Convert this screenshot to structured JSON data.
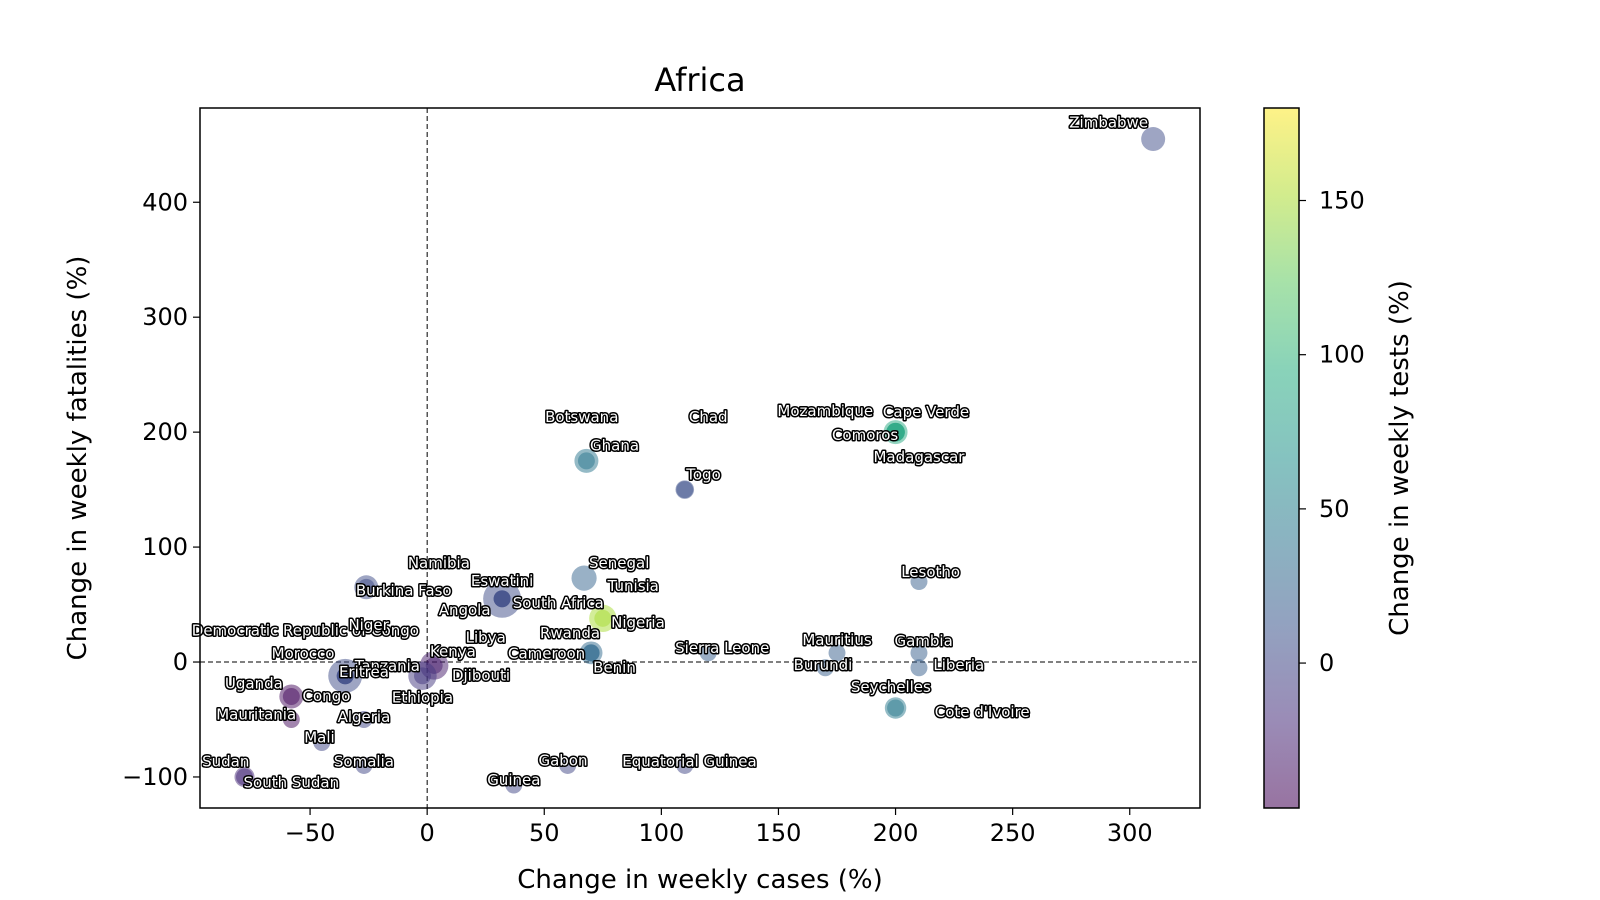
{
  "chart_data": {
    "type": "scatter",
    "title": "Africa",
    "xlabel": "Change in weekly cases (%)",
    "ylabel": "Change in weekly fatalities (%)",
    "colorbar_label": "Change in weekly tests (%)",
    "xlim": [
      -97,
      330
    ],
    "ylim": [
      -127,
      482
    ],
    "xticks": [
      -50,
      0,
      50,
      100,
      150,
      200,
      250,
      300
    ],
    "xtick_labels": [
      "−50",
      "0",
      "50",
      "100",
      "150",
      "200",
      "250",
      "300"
    ],
    "yticks": [
      -100,
      0,
      100,
      200,
      300,
      400
    ],
    "ytick_labels": [
      "−100",
      "0",
      "100",
      "200",
      "300",
      "400"
    ],
    "colorbar_range": [
      -47,
      180
    ],
    "colorbar_ticks": [
      0,
      50,
      100,
      150
    ],
    "colorbar_tick_labels": [
      "0",
      "50",
      "100",
      "150"
    ],
    "colormap": "viridis",
    "reference_lines": {
      "x": 0,
      "y": 0,
      "style": "dashed"
    },
    "grid": false,
    "points": [
      {
        "label": "Zimbabwe",
        "x": 310,
        "y": 455,
        "color_value": 5,
        "size": 1.0
      },
      {
        "label": "Cape Verde",
        "x": 200,
        "y": 200,
        "color_value": 90,
        "size": 1.0
      },
      {
        "label": "Comoros",
        "x": 200,
        "y": 200,
        "color_value": 90,
        "size": 0.6
      },
      {
        "label": "Mozambique",
        "x": 200,
        "y": 200,
        "color_value": 80,
        "size": 0.6
      },
      {
        "label": "Madagascar",
        "x": 200,
        "y": 200,
        "color_value": 90,
        "size": 0.6
      },
      {
        "label": "Ghana",
        "x": 68,
        "y": 175,
        "color_value": 42,
        "size": 1.0
      },
      {
        "label": "Togo",
        "x": 110,
        "y": 150,
        "color_value": 8,
        "size": 0.6
      },
      {
        "label": "Botswana",
        "x": 68,
        "y": 175,
        "color_value": 42,
        "size": 0.5
      },
      {
        "label": "Chad",
        "x": 110,
        "y": 150,
        "color_value": 8,
        "size": 0.5
      },
      {
        "label": "Senegal",
        "x": 67,
        "y": 73,
        "color_value": 25,
        "size": 1.1
      },
      {
        "label": "Tunisia",
        "x": 75,
        "y": 38,
        "color_value": 150,
        "size": 1.3
      },
      {
        "label": "Eswatini",
        "x": 32,
        "y": 55,
        "color_value": 5,
        "size": 2.5
      },
      {
        "label": "Namibia",
        "x": 32,
        "y": 55,
        "color_value": 5,
        "size": 0.5
      },
      {
        "label": "South Africa",
        "x": 32,
        "y": 55,
        "color_value": 5,
        "size": 0.5
      },
      {
        "label": "Nigeria",
        "x": 75,
        "y": 38,
        "color_value": 150,
        "size": 0.5
      },
      {
        "label": "Burkina Faso",
        "x": -26,
        "y": 65,
        "color_value": 5,
        "size": 1.0
      },
      {
        "label": "Angola",
        "x": 32,
        "y": 55,
        "color_value": 5,
        "size": 0.5
      },
      {
        "label": "Democratic Republic of Congo",
        "x": -35,
        "y": -12,
        "color_value": 5,
        "size": 0.5
      },
      {
        "label": "Niger",
        "x": -26,
        "y": 65,
        "color_value": 5,
        "size": 0.5
      },
      {
        "label": "Libya",
        "x": 3,
        "y": -3,
        "color_value": -30,
        "size": 0.5
      },
      {
        "label": "Rwanda",
        "x": 70,
        "y": 8,
        "color_value": 30,
        "size": 0.9
      },
      {
        "label": "Kenya",
        "x": 3,
        "y": -3,
        "color_value": -30,
        "size": 1.4
      },
      {
        "label": "Cameroon",
        "x": 70,
        "y": 8,
        "color_value": 30,
        "size": 0.5
      },
      {
        "label": "Morocco",
        "x": -35,
        "y": -12,
        "color_value": 5,
        "size": 0.5
      },
      {
        "label": "Tanzania",
        "x": -35,
        "y": -12,
        "color_value": 5,
        "size": 2.0
      },
      {
        "label": "Eritrea",
        "x": -35,
        "y": -12,
        "color_value": 5,
        "size": 0.5
      },
      {
        "label": "Djibouti",
        "x": -2,
        "y": -12,
        "color_value": -10,
        "size": 1.4
      },
      {
        "label": "Ethiopia",
        "x": -2,
        "y": -12,
        "color_value": -10,
        "size": 0.5
      },
      {
        "label": "Benin",
        "x": 70,
        "y": 8,
        "color_value": 30,
        "size": 0.5
      },
      {
        "label": "Sierra Leone",
        "x": 120,
        "y": 8,
        "color_value": 20,
        "size": 0.5
      },
      {
        "label": "Mauritius",
        "x": 175,
        "y": 8,
        "color_value": 20,
        "size": 0.5
      },
      {
        "label": "Burundi",
        "x": 170,
        "y": -5,
        "color_value": 20,
        "size": 0.5
      },
      {
        "label": "Gambia",
        "x": 210,
        "y": 8,
        "color_value": 20,
        "size": 0.5
      },
      {
        "label": "Liberia",
        "x": 210,
        "y": -5,
        "color_value": 20,
        "size": 0.5
      },
      {
        "label": "Lesotho",
        "x": 210,
        "y": 70,
        "color_value": 20,
        "size": 0.5
      },
      {
        "label": "Seychelles",
        "x": 200,
        "y": -40,
        "color_value": 45,
        "size": 0.8
      },
      {
        "label": "Cote d'Ivoire",
        "x": 200,
        "y": -40,
        "color_value": 45,
        "size": 0.5
      },
      {
        "label": "Uganda",
        "x": -58,
        "y": -30,
        "color_value": -40,
        "size": 1.0
      },
      {
        "label": "Congo",
        "x": -58,
        "y": -30,
        "color_value": -40,
        "size": 0.5
      },
      {
        "label": "Mauritania",
        "x": -58,
        "y": -50,
        "color_value": -40,
        "size": 0.5
      },
      {
        "label": "Algeria",
        "x": -27,
        "y": -50,
        "color_value": 0,
        "size": 0.5
      },
      {
        "label": "Mali",
        "x": -45,
        "y": -70,
        "color_value": 0,
        "size": 0.5
      },
      {
        "label": "Sudan",
        "x": -78,
        "y": -100,
        "color_value": -20,
        "size": 0.7
      },
      {
        "label": "South Sudan",
        "x": -78,
        "y": -100,
        "color_value": -20,
        "size": 0.5
      },
      {
        "label": "Somalia",
        "x": -27,
        "y": -90,
        "color_value": 0,
        "size": 0.5
      },
      {
        "label": "Gabon",
        "x": 60,
        "y": -90,
        "color_value": 0,
        "size": 0.5
      },
      {
        "label": "Guinea",
        "x": 37,
        "y": -107,
        "color_value": 0,
        "size": 0.5
      },
      {
        "label": "Equatorial Guinea",
        "x": 110,
        "y": -90,
        "color_value": 0,
        "size": 0.5
      }
    ],
    "label_placements": [
      {
        "label": "Zimbabwe",
        "x": 291,
        "y": 465
      },
      {
        "label": "Cape Verde",
        "x": 213,
        "y": 213
      },
      {
        "label": "Comoros",
        "x": 187,
        "y": 193
      },
      {
        "label": "Mozambique",
        "x": 170,
        "y": 214
      },
      {
        "label": "Madagascar",
        "x": 210,
        "y": 174
      },
      {
        "label": "Ghana",
        "x": 80,
        "y": 184
      },
      {
        "label": "Togo",
        "x": 118,
        "y": 159
      },
      {
        "label": "Botswana",
        "x": 66,
        "y": 209
      },
      {
        "label": "Chad",
        "x": 120,
        "y": 209
      },
      {
        "label": "Senegal",
        "x": 82,
        "y": 82
      },
      {
        "label": "Tunisia",
        "x": 88,
        "y": 62
      },
      {
        "label": "Eswatini",
        "x": 32,
        "y": 66
      },
      {
        "label": "Namibia",
        "x": 5,
        "y": 82
      },
      {
        "label": "South Africa",
        "x": 56,
        "y": 47
      },
      {
        "label": "Nigeria",
        "x": 90,
        "y": 30
      },
      {
        "label": "Burkina Faso",
        "x": -10,
        "y": 58
      },
      {
        "label": "Angola",
        "x": 16,
        "y": 41
      },
      {
        "label": "Democratic Republic of Congo",
        "x": -52,
        "y": 23
      },
      {
        "label": "Niger",
        "x": -25,
        "y": 28
      },
      {
        "label": "Libya",
        "x": 25,
        "y": 17
      },
      {
        "label": "Rwanda",
        "x": 61,
        "y": 21
      },
      {
        "label": "Kenya",
        "x": 11,
        "y": 5
      },
      {
        "label": "Cameroon",
        "x": 51,
        "y": 3
      },
      {
        "label": "Morocco",
        "x": -53,
        "y": 3
      },
      {
        "label": "Tanzania",
        "x": -17,
        "y": -8
      },
      {
        "label": "Eritrea",
        "x": -27,
        "y": -13
      },
      {
        "label": "Djibouti",
        "x": 23,
        "y": -16
      },
      {
        "label": "Ethiopia",
        "x": -2,
        "y": -35
      },
      {
        "label": "Benin",
        "x": 80,
        "y": -9
      },
      {
        "label": "Sierra Leone",
        "x": 126,
        "y": 8
      },
      {
        "label": "Mauritius",
        "x": 175,
        "y": 15
      },
      {
        "label": "Burundi",
        "x": 169,
        "y": -7
      },
      {
        "label": "Gambia",
        "x": 212,
        "y": 14
      },
      {
        "label": "Liberia",
        "x": 227,
        "y": -7
      },
      {
        "label": "Lesotho",
        "x": 215,
        "y": 74
      },
      {
        "label": "Seychelles",
        "x": 198,
        "y": -26
      },
      {
        "label": "Cote d'Ivoire",
        "x": 237,
        "y": -48
      },
      {
        "label": "Uganda",
        "x": -74,
        "y": -23
      },
      {
        "label": "Congo",
        "x": -43,
        "y": -34
      },
      {
        "label": "Mauritania",
        "x": -73,
        "y": -50
      },
      {
        "label": "Algeria",
        "x": -27,
        "y": -52
      },
      {
        "label": "Mali",
        "x": -46,
        "y": -70
      },
      {
        "label": "Sudan",
        "x": -86,
        "y": -91
      },
      {
        "label": "South Sudan",
        "x": -58,
        "y": -109
      },
      {
        "label": "Somalia",
        "x": -27,
        "y": -91
      },
      {
        "label": "Gabon",
        "x": 58,
        "y": -90
      },
      {
        "label": "Guinea",
        "x": 37,
        "y": -107
      },
      {
        "label": "Equatorial Guinea",
        "x": 112,
        "y": -91
      }
    ]
  }
}
